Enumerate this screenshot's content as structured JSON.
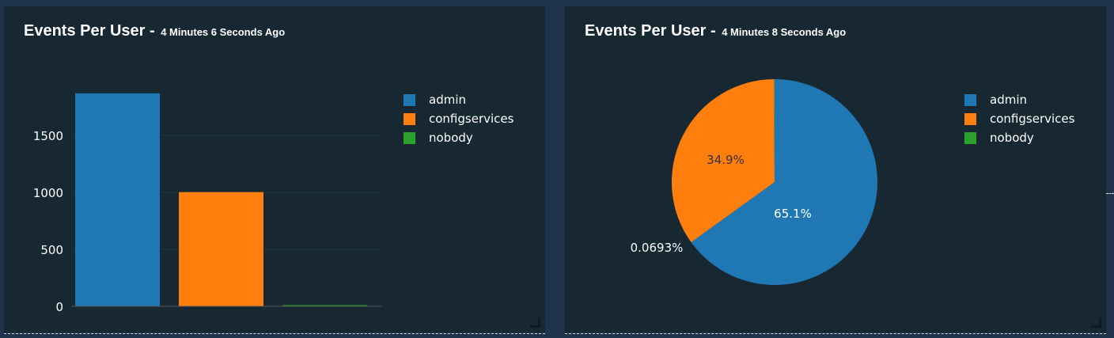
{
  "panels": [
    {
      "title": "Events Per User",
      "separator": " - ",
      "age": "4 Minutes 6 Seconds Ago"
    },
    {
      "title": "Events Per User",
      "separator": " - ",
      "age": "4 Minutes 8 Seconds Ago"
    }
  ],
  "legend": [
    {
      "label": "admin",
      "color": "#1f77b4"
    },
    {
      "label": "configservices",
      "color": "#ff7f0e"
    },
    {
      "label": "nobody",
      "color": "#2ca02c"
    }
  ],
  "chart_data": [
    {
      "type": "bar",
      "categories": [
        "admin",
        "configservices",
        "nobody"
      ],
      "values": [
        1869,
        1002,
        2
      ],
      "yticks": [
        "0",
        "500",
        "1000",
        "1500"
      ],
      "ylim": [
        0,
        1950
      ],
      "legend_position": "right"
    },
    {
      "type": "pie",
      "labels": [
        "admin",
        "configservices",
        "nobody"
      ],
      "values": [
        65.1,
        34.9,
        0.0693
      ],
      "data_labels": [
        "65.1%",
        "34.9%",
        "0.0693%"
      ],
      "legend_position": "right"
    }
  ]
}
